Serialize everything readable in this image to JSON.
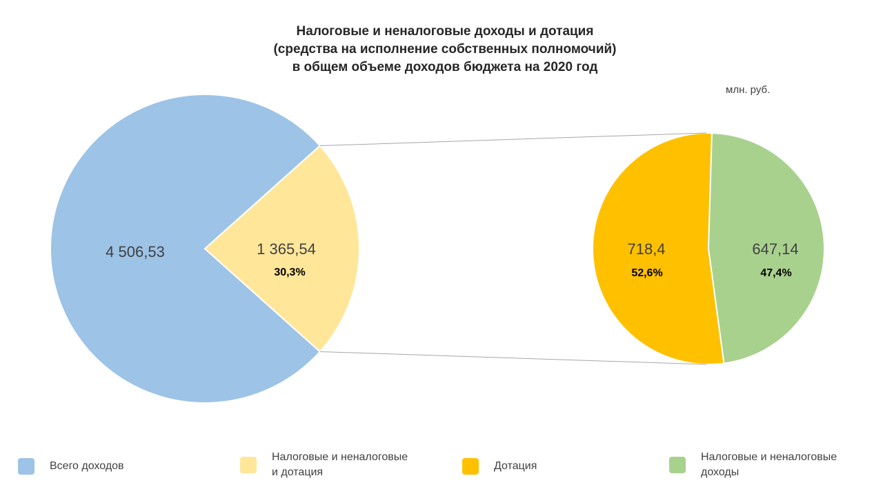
{
  "title": {
    "line1": "Налоговые и неналоговые доходы и дотация",
    "line2": "(средства на исполнение собственных полномочий)",
    "line3": "в общем объеме доходов бюджета на 2020 год"
  },
  "unit_label": "млн. руб.",
  "chart_data": {
    "type": "pie",
    "subtype": "pie-of-pie",
    "main_pie": {
      "slices": [
        {
          "label": "Всего доходов",
          "value": 4506.53,
          "value_text": "4 506,53",
          "percent_text": "",
          "color": "#9dc3e6"
        },
        {
          "label": "Налоговые и неналоговые и дотация",
          "value": 1365.54,
          "value_text": "1 365,54",
          "percent_text": "30,3%",
          "color": "#ffe699"
        }
      ]
    },
    "secondary_pie": {
      "slices": [
        {
          "label": "Дотация",
          "value": 718.4,
          "value_text": "718,4",
          "percent_text": "52,6%",
          "color": "#ffc000"
        },
        {
          "label": "Налоговые и неналоговые доходы",
          "value": 647.14,
          "value_text": "647,14",
          "percent_text": "47,4%",
          "color": "#a9d18e"
        }
      ]
    },
    "connector_color": "#a6a6a6",
    "legend": {
      "position": "bottom",
      "items": [
        {
          "line1": "Всего доходов",
          "line2": "",
          "color": "#9dc3e6"
        },
        {
          "line1": "Налоговые и неналоговые",
          "line2": "и дотация",
          "color": "#ffe699"
        },
        {
          "line1": "Дотация",
          "line2": "",
          "color": "#ffc000"
        },
        {
          "line1": "Налоговые и неналоговые",
          "line2": "доходы",
          "color": "#a9d18e"
        }
      ]
    }
  }
}
